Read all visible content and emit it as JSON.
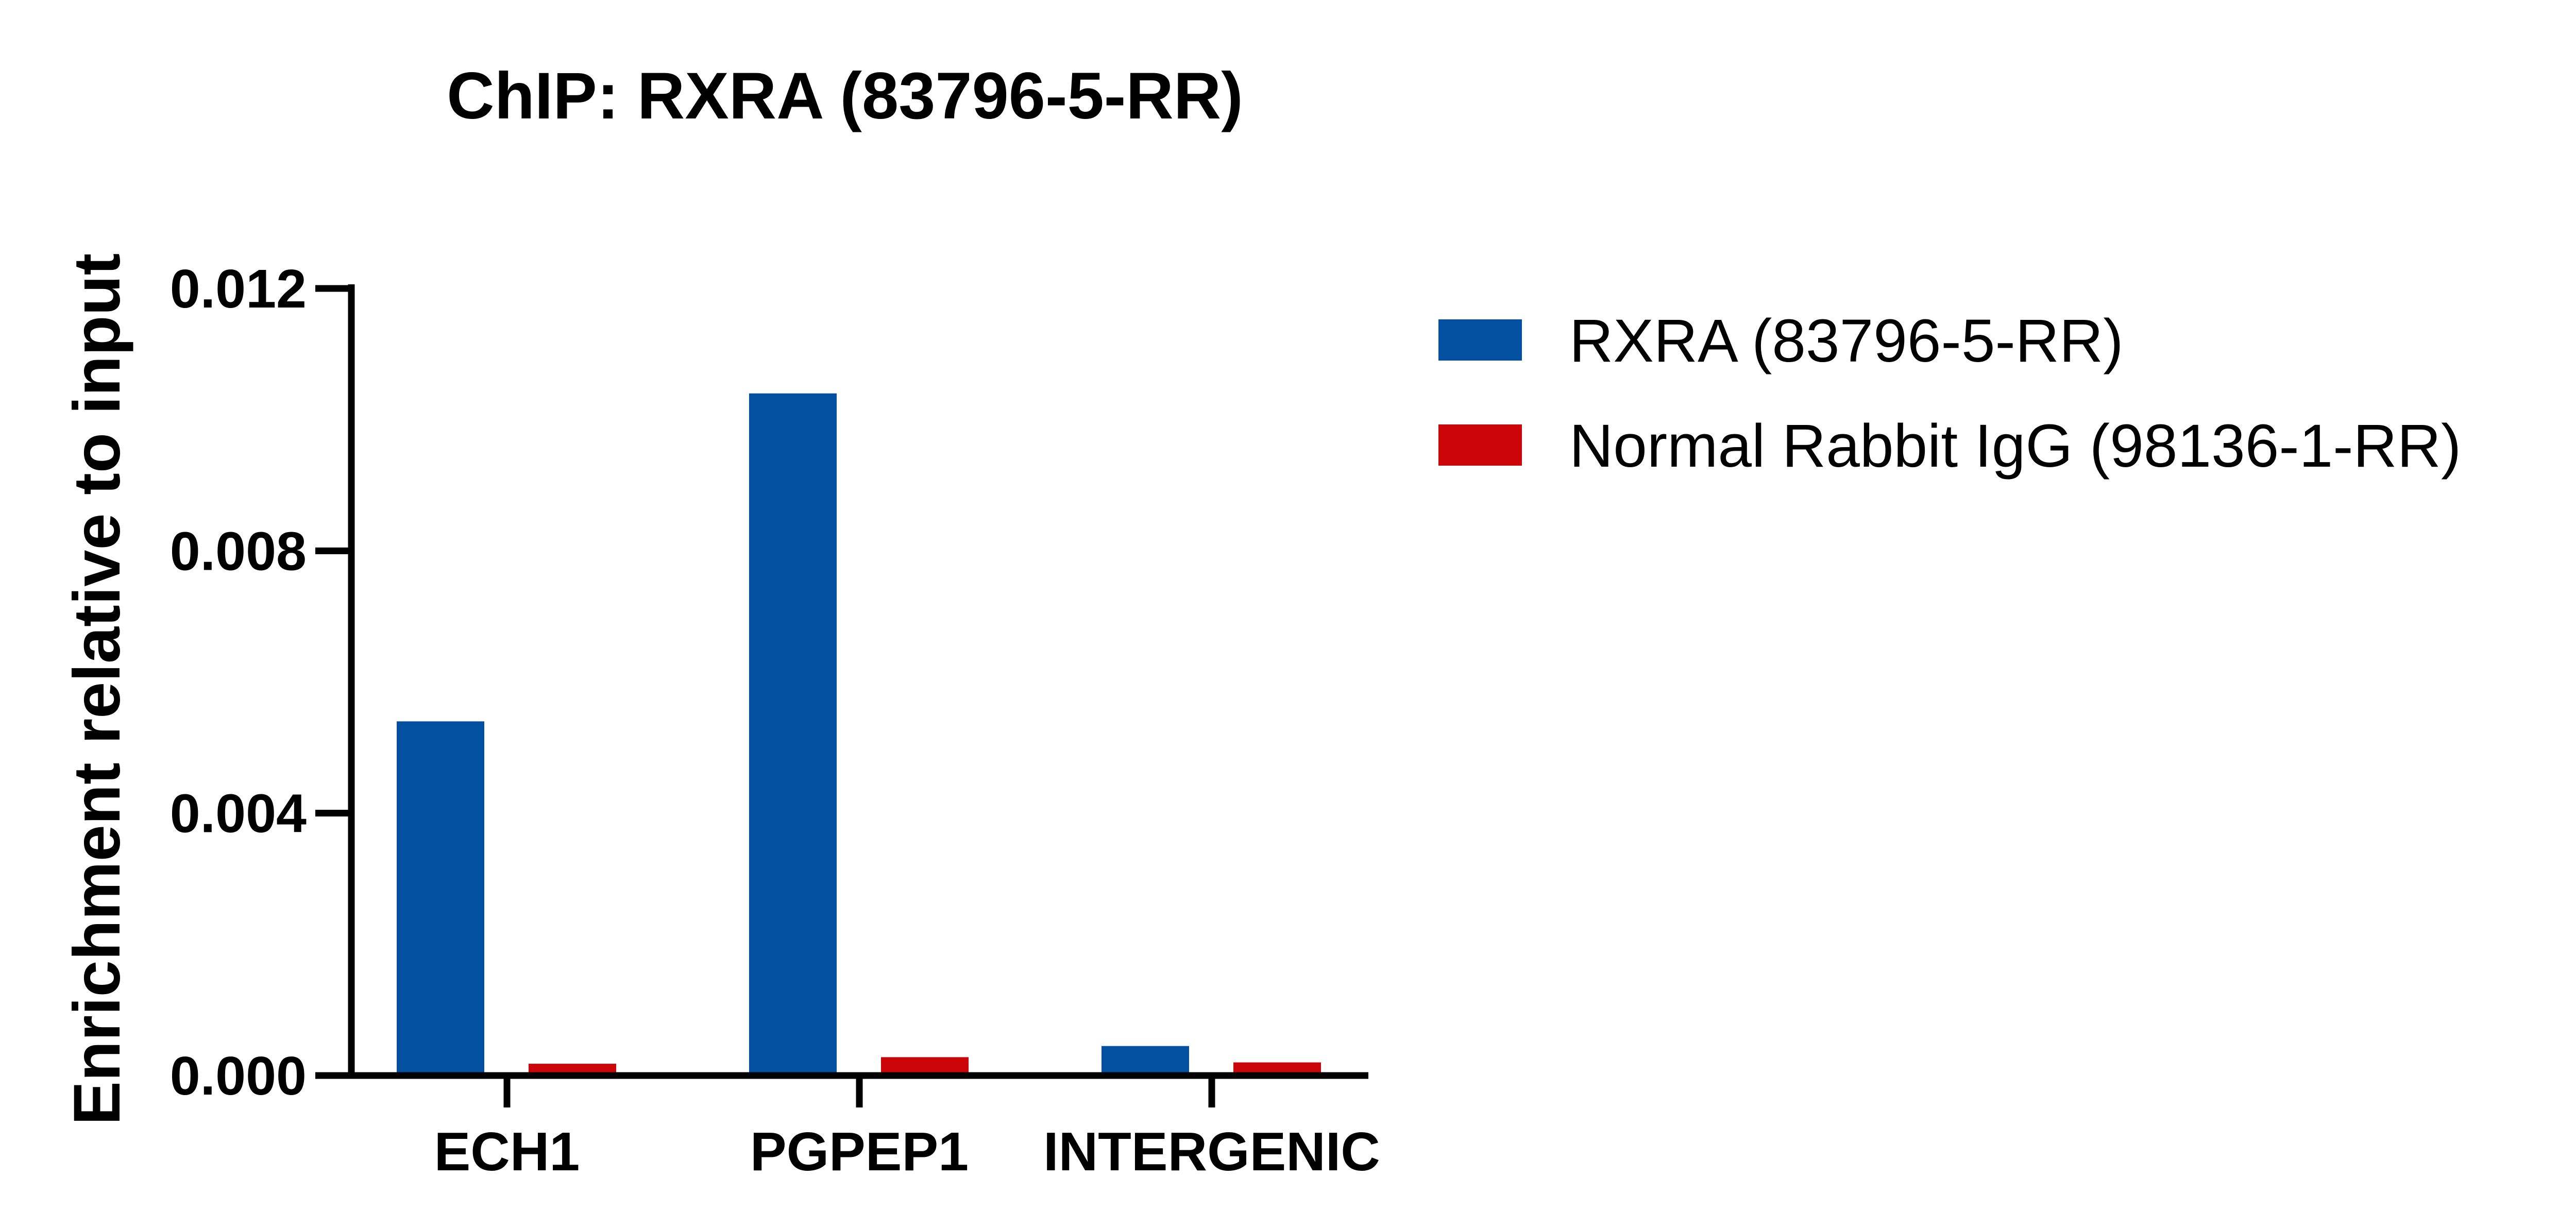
{
  "chart_data": {
    "type": "bar",
    "title": "ChIP: RXRA (83796-5-RR)",
    "xlabel": "",
    "ylabel": "Enrichment relative to input",
    "categories": [
      "ECH1",
      "PGPEP1",
      "INTERGENIC"
    ],
    "ylim": [
      0,
      0.012
    ],
    "yticks": [
      0.0,
      0.004,
      0.008,
      0.012
    ],
    "ytick_labels": [
      "0.000",
      "0.004",
      "0.008",
      "0.012"
    ],
    "series": [
      {
        "name": "RXRA (83796-5-RR)",
        "color": "#0350A0",
        "values": [
          0.0054,
          0.0104,
          0.00045
        ]
      },
      {
        "name": "Normal Rabbit IgG (98136-1-RR)",
        "color": "#CC0508",
        "values": [
          0.00018,
          0.00028,
          0.0002
        ]
      }
    ],
    "legend_position": "right",
    "grid": false
  }
}
